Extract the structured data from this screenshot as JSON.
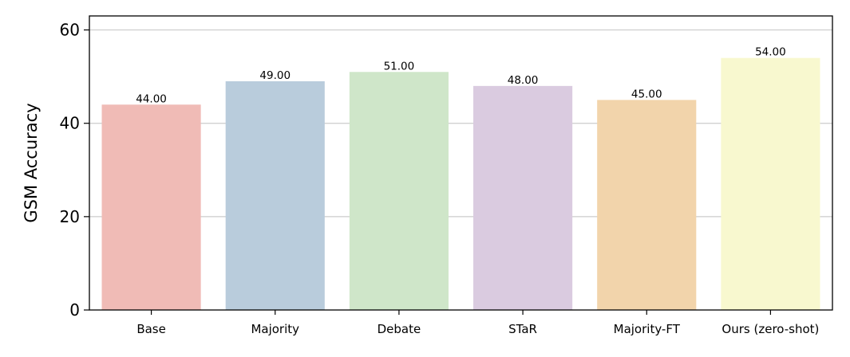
{
  "chart_data": {
    "type": "bar",
    "title": "",
    "xlabel": "",
    "ylabel": "GSM Accuracy",
    "ylim": [
      0,
      63
    ],
    "yticks": [
      0,
      20,
      40,
      60
    ],
    "grid": "horizontal",
    "legend": "none",
    "categories": [
      "Base",
      "Majority",
      "Debate",
      "STaR",
      "Majority-FT",
      "Ours (zero-shot)"
    ],
    "values": [
      44,
      49,
      51,
      48,
      45,
      54
    ],
    "value_labels": [
      "44.00",
      "49.00",
      "51.00",
      "48.00",
      "45.00",
      "54.00"
    ],
    "colors": [
      "#f0bbb6",
      "#b9ccdc",
      "#cfe6c9",
      "#dacbe0",
      "#f2d4ab",
      "#f8f8cf"
    ]
  }
}
